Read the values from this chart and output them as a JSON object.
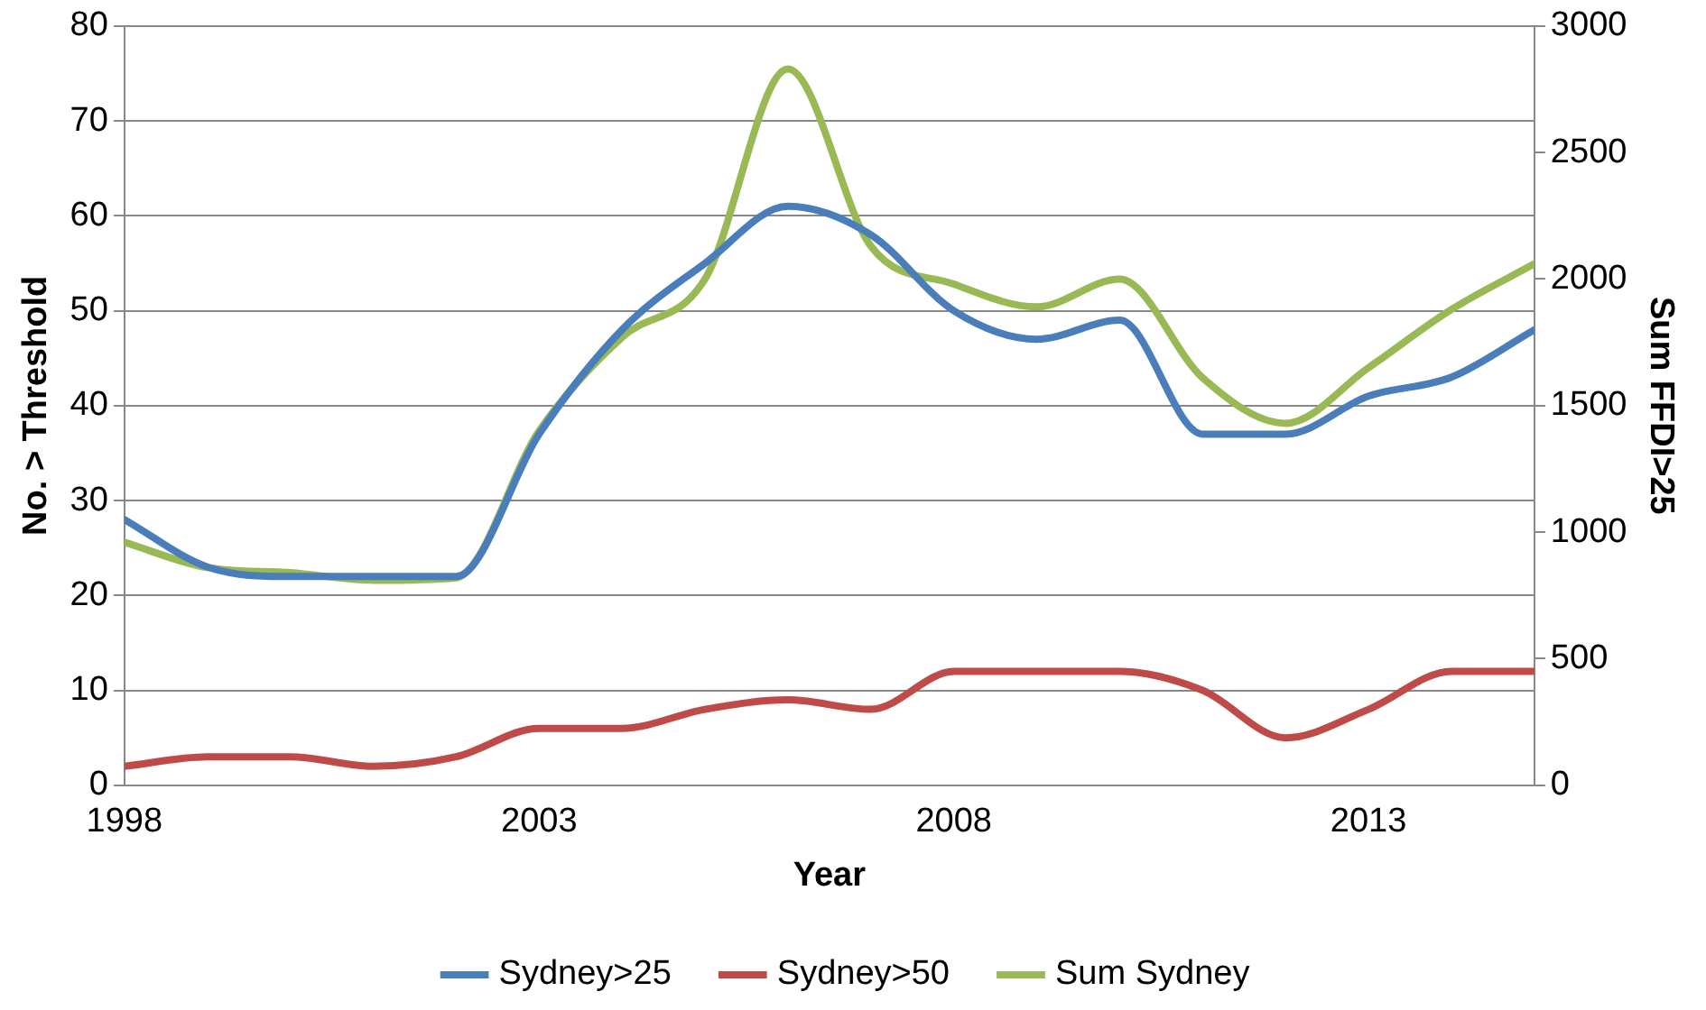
{
  "chart_data": {
    "type": "line",
    "xlabel": "Year",
    "ylabel": "No. > Threshold",
    "y2label": "Sum FFDI>25",
    "x": [
      1998,
      1999,
      2000,
      2001,
      2002,
      2003,
      2004,
      2005,
      2006,
      2007,
      2008,
      2009,
      2010,
      2011,
      2012,
      2013,
      2014,
      2015
    ],
    "series": [
      {
        "name": "Sydney>25",
        "color": "#4a7ebb",
        "values": [
          28,
          23,
          22,
          22,
          22,
          37,
          48,
          55,
          61,
          58,
          50,
          47,
          49,
          37,
          37,
          41,
          43,
          48
        ]
      },
      {
        "name": "Sydney>50",
        "color": "#be4b48",
        "values": [
          2,
          3,
          3,
          2,
          3,
          6,
          6,
          8,
          9,
          8,
          12,
          12,
          12,
          10,
          5,
          8,
          12,
          12
        ]
      },
      {
        "name": "Sum Sydney",
        "color": "#98b954",
        "axis": "y2",
        "values": [
          960,
          860,
          840,
          810,
          820,
          1400,
          1770,
          2000,
          2830,
          2130,
          1980,
          1890,
          2000,
          1610,
          1430,
          1650,
          1880,
          2060
        ]
      }
    ],
    "xlim": [
      1998,
      2015
    ],
    "xticks": [
      1998,
      2003,
      2008,
      2013
    ],
    "ylim": [
      0,
      80
    ],
    "yticks": [
      0,
      10,
      20,
      30,
      40,
      50,
      60,
      70,
      80
    ],
    "y2lim": [
      0,
      3000
    ],
    "y2ticks": [
      0,
      500,
      1000,
      1500,
      2000,
      2500,
      3000
    ],
    "grid": "y",
    "legend": "bottom",
    "marker": "none",
    "line_style": "solid"
  }
}
